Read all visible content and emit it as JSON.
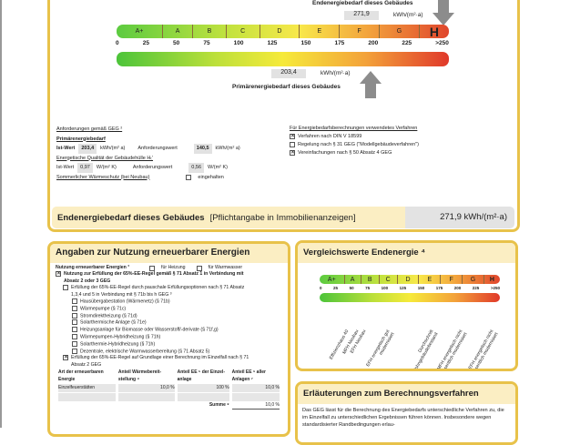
{
  "top": {
    "end_label": "Endenergiebedarf dieses Gebäudes",
    "end_value": "271,9",
    "unit": "kWh/(m²·a)",
    "classes": [
      "A+",
      "A",
      "B",
      "C",
      "D",
      "E",
      "F",
      "G",
      "H"
    ],
    "active_class": "H",
    "ticks": [
      "0",
      "25",
      "50",
      "75",
      "100",
      "125",
      "150",
      "175",
      "200",
      "225",
      ">250"
    ],
    "primary_value": "203,4",
    "primary_label": "Primärenergiebedarf dieses Gebäudes",
    "colors": {
      "frame": "#e8c24a",
      "arrow": "#8c8c8c"
    }
  },
  "req": {
    "title": "Anforderungen gemäß GEG ²",
    "primary_title": "Primärenergiebedarf",
    "ist": "Ist-Wert",
    "ist_primary": "203,4",
    "unit1": "kWh/(m² a)",
    "anf": "Anforderungswert",
    "anf_primary": "140,5",
    "hull_title": "Energetische Qualität der Gebäudehülle Hₜ'",
    "ist_hull": "0,97",
    "unit2": "W/(m² K)",
    "anf_hull": "0,56",
    "summer": "Sommerlicher Wärmeschutz (bei Neubau)",
    "summer_cb": "eingehalten"
  },
  "method": {
    "title": "Für Energiebedarfsberechnungen verwendetes Verfahren",
    "items": [
      {
        "label": "Verfahren nach DIN V 18599",
        "checked": true
      },
      {
        "label": "Regelung nach § 31 GEG (\"Modellgebäudeverfahren\")",
        "checked": false
      },
      {
        "label": "Vereinfachungen nach § 50 Absatz 4 GEG",
        "checked": true
      }
    ]
  },
  "endbar": {
    "label": "Endenergiebedarf dieses Gebäudes",
    "note": "[Pflichtangabe in Immobilienanzeigen]",
    "value": "271,9 kWh/(m²·a)"
  },
  "renew": {
    "title": "Angaben zur Nutzung erneuerbarer Energien",
    "use_label": "Nutzung erneuerbarer Energien ³",
    "heating": "für Heizung",
    "water": "für Warmwasser",
    "rule": "Nutzung zur Erfüllung der 65%-EE-Regel gemäß § 71 Absatz 1 in Verbindung mit Absatz 2 oder 3 GEG",
    "pauschal": "Erfüllung der 65%-EE-Regel durch pauschale Erfüllungsoptionen nach § 71 Absatz 1,3,4 und 5 in Verbindung mit § 71b bis h GEG ³",
    "options": [
      "Hausübergabestation (Wärmenetz) (§ 71b)",
      "Wärmepumpe (§ 71c)",
      "Stromdirektheizung (§ 71d)",
      "Solarthermische Anlage (§ 71e)",
      "Heizungsanlage für Biomasse oder Wasserstoff/-derivate (§ 71f,g)",
      "Wärmepumpen-Hybridheizung (§ 71h)",
      "Solarthermie-Hybridheizung (§ 71h)",
      "Dezentrale, elektrische Warmwasserbereitung (§ 71 Absatz 5)"
    ],
    "calc": "Erfüllung der 65%-EE-Regel auf Grundlage einer Berechnung im Einzelfall nach § 71 Absatz 2 GEG",
    "cols": [
      "Art der erneuerbaren Energie",
      "Anteil Wärmebereit-stellung ⁴",
      "Anteil EE ⁵ der Einzel-anlage",
      "Anteil EE ⁶ aller Anlagen ⁷"
    ],
    "rows": [
      [
        "Einzelfeuerstätten",
        "10,0 %",
        "100 %",
        "10,0 %"
      ],
      [
        "",
        "",
        "",
        ""
      ]
    ],
    "sum_label": "Summe ⁸",
    "sum": "10,0 %"
  },
  "compare": {
    "title": "Vergleichswerte Endenergie ⁴",
    "labels": [
      "Effizienzhaus 40",
      "MFH Neubau",
      "EFH Neubau",
      "EFH energetisch gut modernisiert",
      "Durchschnitt Wohngebäudebestand",
      "MFH energetisch nicht wesentlich modernisiert",
      "EFH energetisch nicht wesentlich modernisiert"
    ]
  },
  "explain": {
    "title": "Erläuterungen zum Berechnungsverfahren",
    "text": "Das GEG lässt für die Berechnung des Energiebedarfs unterschiedliche Verfahren zu, die im Einzelfall zu unterschiedlichen Ergebnissen führen können. Insbesondere wegen standardisierter Randbedingungen erlau-"
  }
}
